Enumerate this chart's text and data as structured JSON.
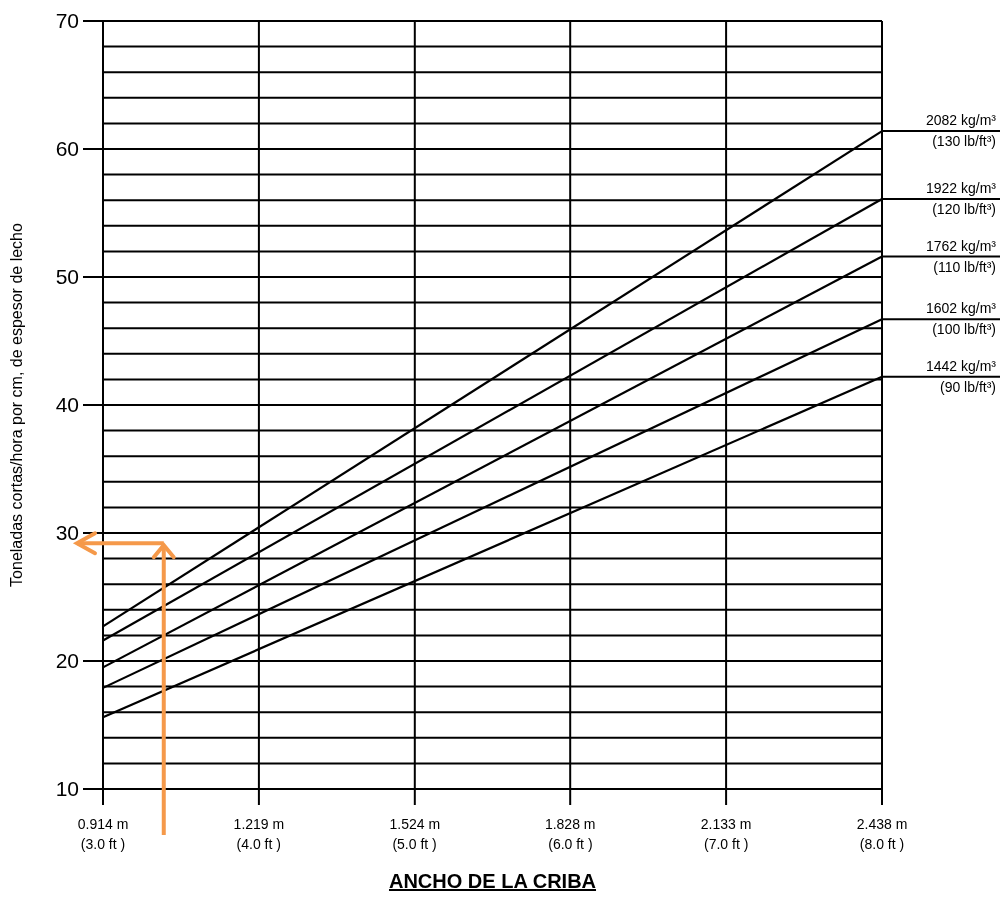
{
  "chart_data": {
    "type": "line",
    "xlabel": "ANCHO DE LA CRIBA",
    "ylabel": "Toneladas cortas/hora por cm, de espesor de lecho",
    "x": [
      0.914,
      2.438
    ],
    "series": [
      {
        "name": "2082 kg/m³\n(130 lb/ft³)",
        "color": "#000000",
        "values": [
          22.7,
          61.4
        ]
      },
      {
        "name": "1922 kg/m³\n(120 lb/ft³)",
        "color": "#000000",
        "values": [
          21.6,
          56.1
        ]
      },
      {
        "name": "1762 kg/m³\n(110 lb/ft³)",
        "color": "#000000",
        "values": [
          19.5,
          51.6
        ]
      },
      {
        "name": "1602 kg/m³\n(100  lb/ft³)",
        "color": "#000000",
        "values": [
          17.9,
          46.7
        ]
      },
      {
        "name": "1442 kg/m³\n(90 lb/ft³)",
        "color": "#000000",
        "values": [
          15.6,
          42.2
        ]
      }
    ],
    "xlim": [
      0.914,
      2.438
    ],
    "xticks": [
      {
        "value": 0.914,
        "label": "0.914 m"
      },
      {
        "value": 1.219,
        "label": "1.219 m"
      },
      {
        "value": 1.524,
        "label": "1.524 m"
      },
      {
        "value": 1.828,
        "label": "1.828 m"
      },
      {
        "value": 2.133,
        "label": "2.133 m"
      },
      {
        "value": 2.438,
        "label": "2.438 m"
      }
    ],
    "x2lim": [
      3.0,
      8.0
    ],
    "x2ticks": [
      {
        "value": 3,
        "label": "(3.0 ft )"
      },
      {
        "value": 4,
        "label": "(4.0 ft )"
      },
      {
        "value": 5,
        "label": "(5.0 ft )"
      },
      {
        "value": 6,
        "label": "(6.0 ft )"
      },
      {
        "value": 7,
        "label": "(7.0 ft )"
      },
      {
        "value": 8,
        "label": "(8.0 ft )"
      }
    ],
    "ylim": [
      10,
      70
    ],
    "yticks": [
      10,
      {
        "value": 12,
        "label": null
      },
      {
        "value": 14,
        "label": null
      },
      {
        "value": 16,
        "label": null
      },
      {
        "value": 18,
        "label": null
      },
      20,
      {
        "value": 22,
        "label": null
      },
      {
        "value": 24,
        "label": null
      },
      {
        "value": 26,
        "label": null
      },
      {
        "value": 28,
        "label": null
      },
      30,
      {
        "value": 32,
        "label": null
      },
      {
        "value": 34,
        "label": null
      },
      {
        "value": 36,
        "label": null
      },
      {
        "value": 38,
        "label": null
      },
      40,
      {
        "value": 42,
        "label": null
      },
      {
        "value": 44,
        "label": null
      },
      {
        "value": 46,
        "label": null
      },
      {
        "value": 48,
        "label": null
      },
      50,
      {
        "value": 52,
        "label": null
      },
      {
        "value": 54,
        "label": null
      },
      {
        "value": 56,
        "label": null
      },
      {
        "value": 58,
        "label": null
      },
      60,
      {
        "value": 62,
        "label": null
      },
      {
        "value": 64,
        "label": null
      },
      {
        "value": 66,
        "label": null
      },
      {
        "value": 68,
        "label": null
      },
      70
    ],
    "grid": true,
    "marker": "none",
    "line_style": "solid"
  }
}
